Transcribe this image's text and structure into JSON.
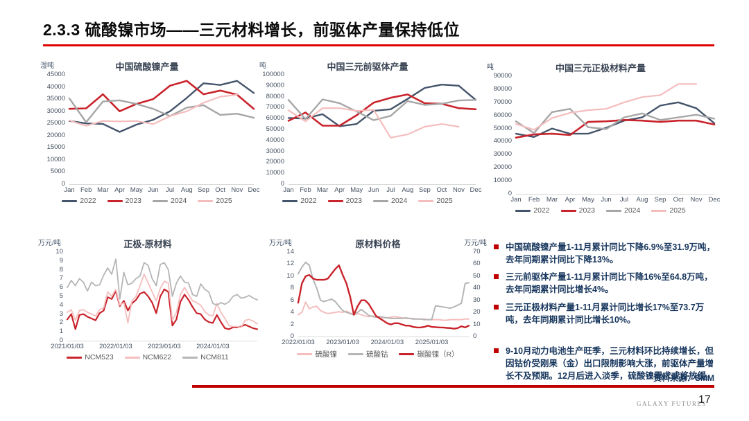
{
  "slide": {
    "title": "2.3.3 硫酸镍市场——三元材料增长，前驱体产量保持低位",
    "source_label": "资料来源：SMM",
    "footer_brand": "GALAXY FUTURES",
    "page_number": "17",
    "colors": {
      "title_rule_red": "#E00000",
      "bottom_rule_red": "#C00000",
      "bullet_square_red": "#C00000",
      "bullet_text_navy": "#17365D",
      "series_2022_slate": "#44546A",
      "series_2023_red": "#C9232B",
      "series_2024_gray": "#A6A6A6",
      "series_2025_pink": "#F5BDBD"
    }
  },
  "bullets": [
    "中国硫酸镍产量1-11月累计同比下降6.9%至31.9万吨，去年同期累计同比下降13%。",
    "三元前驱体产量1-11月累计同比下降16%至64.8万吨，去年同期累计同比增长4%。",
    "三元正极材料产量1-11月累计同比增长17%至73.7万吨，去年同期累计同比增长10%。",
    "9-10月动力电池生产旺季，三元材料环比持续增长，但因钴价受刚果（金）出口限制影响大涨，前驱体产量增长不及预期。12月后进入淡季，硫酸镍需求或将放缓。"
  ],
  "chart_data": [
    {
      "type": "line",
      "title": "中国硫酸镍产量",
      "unit_left": "湿吨",
      "unit_right": "",
      "categories": [
        "Jan",
        "Feb",
        "Mar",
        "Apr",
        "May",
        "Jun",
        "Jul",
        "Aug",
        "Sep",
        "Oct",
        "Nov",
        "Dec"
      ],
      "ylim": [
        0,
        45000
      ],
      "y_ticks": [
        "45000",
        "40000",
        "35000",
        "30000",
        "25000",
        "20000",
        "15000",
        "10000",
        "5000",
        "0"
      ],
      "legend_position": "bottom",
      "series": [
        {
          "name": "2022",
          "color": "#44546A",
          "width": 2.4,
          "values": [
            26000,
            25000,
            24800,
            21500,
            24500,
            26500,
            30000,
            35500,
            41500,
            40800,
            42500,
            37500
          ]
        },
        {
          "name": "2023",
          "color": "#C9232B",
          "width": 2.6,
          "values": [
            31000,
            31200,
            37000,
            30000,
            33000,
            35000,
            40500,
            42500,
            37000,
            38500,
            36800,
            31000
          ]
        },
        {
          "name": "2024",
          "color": "#A6A6A6",
          "width": 2.4,
          "values": [
            35300,
            25500,
            34000,
            34500,
            33000,
            31000,
            28000,
            31500,
            32500,
            28500,
            29000,
            27300
          ]
        },
        {
          "name": "2025",
          "color": "#F5BDBD",
          "width": 2.2,
          "values": [
            26200,
            24000,
            26000,
            25800,
            26000,
            24700,
            28000,
            30000,
            33500,
            36000,
            36800
          ]
        }
      ]
    },
    {
      "type": "line",
      "title": "中国三元前驱体产量",
      "unit_left": "吨",
      "unit_right": "",
      "categories": [
        "Jan",
        "Feb",
        "Mar",
        "Apr",
        "May",
        "Jun",
        "Jul",
        "Aug",
        "Sep",
        "Oct",
        "Nov",
        "Dec"
      ],
      "ylim": [
        0,
        100000
      ],
      "y_ticks": [
        "100000",
        "90000",
        "80000",
        "70000",
        "60000",
        "50000",
        "40000",
        "30000",
        "20000",
        "10000",
        "0"
      ],
      "legend_position": "bottom",
      "series": [
        {
          "name": "2022",
          "color": "#44546A",
          "width": 2.4,
          "values": [
            60500,
            60000,
            64000,
            53000,
            55000,
            67000,
            68500,
            78000,
            88000,
            91000,
            90000,
            77000
          ]
        },
        {
          "name": "2023",
          "color": "#C9232B",
          "width": 2.6,
          "values": [
            58000,
            65500,
            53500,
            53500,
            63000,
            74500,
            79000,
            82000,
            74000,
            73500,
            69500,
            68500
          ]
        },
        {
          "name": "2024",
          "color": "#A6A6A6",
          "width": 2.4,
          "values": [
            77000,
            59500,
            77500,
            74000,
            66500,
            58500,
            62500,
            76000,
            72500,
            73500,
            76500,
            77000
          ]
        },
        {
          "name": "2025",
          "color": "#F5BDBD",
          "width": 2.2,
          "values": [
            67500,
            57500,
            69500,
            69500,
            67000,
            68000,
            42500,
            45500,
            52500,
            55000,
            52500
          ]
        }
      ]
    },
    {
      "type": "line",
      "title": "中国三元正极材料产量",
      "unit_left": "吨",
      "unit_right": "",
      "categories": [
        "Jan",
        "Feb",
        "Mar",
        "Apr",
        "May",
        "Jun",
        "Jul",
        "Aug",
        "Sep",
        "Oct",
        "Nov",
        "Dec"
      ],
      "ylim": [
        0,
        90000
      ],
      "y_ticks": [
        "90000",
        "80000",
        "70000",
        "60000",
        "50000",
        "40000",
        "30000",
        "20000",
        "10000",
        "0"
      ],
      "legend_position": "bottom",
      "series": [
        {
          "name": "2022",
          "color": "#44546A",
          "width": 2.4,
          "values": [
            46000,
            43500,
            50000,
            46000,
            46000,
            50500,
            56000,
            58500,
            67500,
            70000,
            65500,
            54000
          ]
        },
        {
          "name": "2023",
          "color": "#C9232B",
          "width": 2.6,
          "values": [
            43000,
            45500,
            46000,
            45000,
            55000,
            55500,
            56500,
            56000,
            55000,
            56000,
            56000,
            53000
          ]
        },
        {
          "name": "2024",
          "color": "#A6A6A6",
          "width": 2.4,
          "values": [
            55500,
            46500,
            62500,
            65000,
            51000,
            49500,
            58500,
            61500,
            56500,
            58500,
            60500,
            57500
          ]
        },
        {
          "name": "2025",
          "color": "#F5BDBD",
          "width": 2.2,
          "values": [
            53500,
            49000,
            58000,
            62000,
            64000,
            65000,
            70000,
            74000,
            75500,
            84000,
            84000
          ]
        }
      ]
    },
    {
      "type": "line",
      "title": "正极-原材料",
      "unit_left": "万元/吨",
      "unit_right": "",
      "x_count": 48,
      "x_ticks": [
        {
          "label": "2021/01/03",
          "index": 0
        },
        {
          "label": "2022/01/03",
          "index": 12
        },
        {
          "label": "2023/01/03",
          "index": 24
        },
        {
          "label": "2024/01/03",
          "index": 36
        }
      ],
      "ylim": [
        0,
        10
      ],
      "y_ticks": [
        "10",
        "9",
        "8",
        "7",
        "6",
        "5",
        "4",
        "3",
        "2",
        "1",
        "0"
      ],
      "legend_position": "bottom",
      "series": [
        {
          "name": "NCM523",
          "color": "#C9232B",
          "width": 2.2,
          "values": [
            2.4,
            3.0,
            1.3,
            2.9,
            3.0,
            2.7,
            2.5,
            2.3,
            3.1,
            3.4,
            4.9,
            4.7,
            5.6,
            3.9,
            4.5,
            3.4,
            4.2,
            4.6,
            5.3,
            5.5,
            5.0,
            4.3,
            3.1,
            5.0,
            5.8,
            5.5,
            1.7,
            2.4,
            4.4,
            5.2,
            4.6,
            3.8,
            3.1,
            3.0,
            2.4,
            2.1,
            2.0,
            2.9,
            2.1,
            1.4,
            1.3,
            1.5,
            1.5,
            1.6,
            1.8,
            1.6,
            1.4,
            1.3
          ]
        },
        {
          "name": "NCM622",
          "color": "#F5BDBD",
          "width": 1.8,
          "values": [
            3.2,
            3.5,
            2.3,
            3.4,
            3.5,
            3.2,
            3.0,
            2.8,
            3.5,
            3.7,
            5.5,
            5.0,
            5.8,
            4.0,
            4.3,
            2.0,
            4.5,
            5.0,
            6.2,
            7.5,
            6.5,
            5.5,
            4.5,
            5.9,
            6.7,
            6.5,
            2.3,
            3.2,
            5.2,
            6.0,
            5.2,
            4.5,
            4.3,
            4.0,
            3.3,
            2.9,
            2.8,
            4.2,
            3.2,
            2.5,
            1.7,
            1.6,
            1.6,
            1.5,
            2.3,
            2.4,
            2.2,
            1.9
          ]
        },
        {
          "name": "NCM811",
          "color": "#B5B5B5",
          "width": 1.8,
          "values": [
            6.0,
            6.8,
            6.2,
            7.0,
            6.6,
            5.6,
            6.6,
            6.2,
            6.3,
            7.4,
            8.2,
            7.5,
            9.2,
            4.7,
            7.7,
            6.3,
            6.5,
            7.0,
            7.3,
            8.8,
            8.5,
            7.0,
            6.2,
            8.6,
            8.8,
            8.0,
            5.0,
            6.5,
            7.3,
            6.6,
            6.5,
            5.2,
            5.0,
            6.4,
            5.8,
            5.5,
            4.2,
            4.0,
            4.3,
            4.1,
            4.4,
            5.0,
            5.2,
            4.8,
            4.9,
            5.1,
            4.8,
            4.6
          ]
        }
      ]
    },
    {
      "type": "line",
      "title": "原材料价格",
      "unit_left": "万元/吨",
      "unit_right": "万元/吨",
      "x_count": 47,
      "x_ticks": [
        {
          "label": "2022/01/03",
          "index": 0
        },
        {
          "label": "2023/01/03",
          "index": 12
        },
        {
          "label": "2024/01/03",
          "index": 24
        },
        {
          "label": "2025/01/03",
          "index": 36
        }
      ],
      "ylim": [
        0,
        14
      ],
      "y_ticks": [
        "14",
        "12",
        "10",
        "8",
        "6",
        "4",
        "2",
        "0"
      ],
      "ylim_right": [
        0,
        70
      ],
      "y_ticks_right": [
        "70",
        "60",
        "50",
        "40",
        "30",
        "20",
        "10",
        "0"
      ],
      "legend_position": "bottom",
      "series": [
        {
          "name": "硫酸镍",
          "color": "#F5BDBD",
          "width": 2.0,
          "values": [
            3.6,
            4.0,
            5.7,
            4.6,
            4.9,
            5.0,
            4.3,
            4.0,
            3.8,
            3.9,
            4.0,
            4.1,
            4.0,
            4.2,
            3.9,
            3.6,
            3.8,
            3.6,
            3.4,
            3.3,
            3.4,
            3.3,
            3.2,
            3.1,
            3.1,
            3.2,
            3.3,
            3.2,
            3.1,
            3.0,
            3.0,
            3.0,
            2.9,
            2.9,
            2.9,
            2.8,
            2.8,
            2.8,
            2.8,
            2.7,
            2.7,
            2.8,
            2.8,
            2.8,
            2.8,
            2.9,
            2.9
          ]
        },
        {
          "name": "硫酸钴",
          "color": "#B5B5B5",
          "width": 2.0,
          "values": [
            10.4,
            11.5,
            12.3,
            11.8,
            9.5,
            8.0,
            6.0,
            5.8,
            6.0,
            6.2,
            5.8,
            5.0,
            4.3,
            4.0,
            3.8,
            3.6,
            4.0,
            4.5,
            4.0,
            3.5,
            3.3,
            3.2,
            3.3,
            3.2,
            3.1,
            3.0,
            3.0,
            3.0,
            3.0,
            3.1,
            3.0,
            2.9,
            2.9,
            2.9,
            2.8,
            2.8,
            2.8,
            5.1,
            5.0,
            4.9,
            4.8,
            4.7,
            4.9,
            5.2,
            5.5,
            8.8,
            8.9
          ]
        },
        {
          "name": "碳酸锂（R）",
          "color": "#C9232B",
          "width": 2.4,
          "axis": "right",
          "values": [
            28,
            44,
            50,
            51,
            48,
            47,
            47,
            47,
            48,
            52,
            56,
            59,
            51,
            44,
            33,
            18,
            25,
            30,
            30,
            27,
            22,
            17,
            15,
            13,
            11,
            10,
            11,
            11,
            10,
            9,
            9,
            8,
            7.5,
            7.5,
            8,
            9,
            8,
            7.8,
            7.5,
            7.5,
            7.2,
            7.0,
            6.5,
            7.0,
            8.5,
            7.5,
            9
          ]
        }
      ]
    }
  ]
}
